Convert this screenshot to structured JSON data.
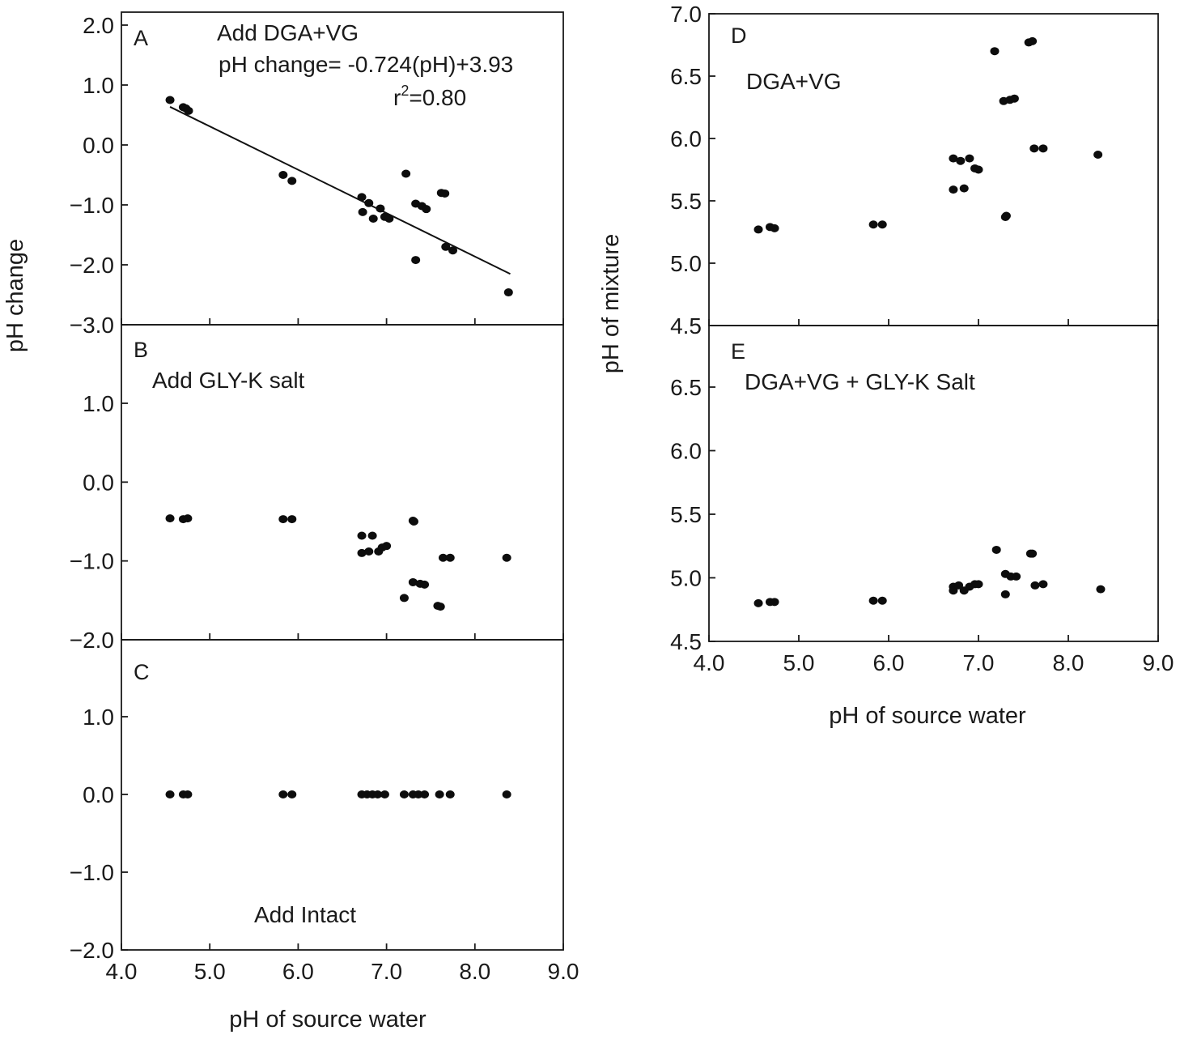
{
  "figure": {
    "left_ylabel": "pH change",
    "right_ylabel": "pH of mixture",
    "left_xlabel": "pH of source water",
    "right_xlabel": "pH of source water"
  },
  "chart_data": [
    {
      "panel": "A",
      "type": "scatter",
      "annotation": "Add DGA+VG",
      "equation": "pH change= -0.724(pH)+3.93",
      "r2_prefix": "r",
      "r2_sup": "2",
      "r2_value": "=0.80",
      "xlim": [
        4.0,
        9.0
      ],
      "ylim": [
        -3.0,
        2.0
      ],
      "yticks": [
        "−3.0",
        "−2.0",
        "−1.0",
        "0.0",
        "1.0",
        "2.0"
      ],
      "yticks_v": [
        -3,
        -2,
        -1,
        0,
        1,
        2
      ],
      "fit": {
        "slope": -0.724,
        "intercept": 3.93,
        "x": [
          4.55,
          8.4
        ]
      },
      "points": [
        [
          4.55,
          0.75
        ],
        [
          4.7,
          0.63
        ],
        [
          4.73,
          0.61
        ],
        [
          4.76,
          0.57
        ],
        [
          5.83,
          -0.5
        ],
        [
          5.93,
          -0.6
        ],
        [
          6.72,
          -0.87
        ],
        [
          6.73,
          -1.12
        ],
        [
          6.8,
          -0.97
        ],
        [
          6.85,
          -1.23
        ],
        [
          6.93,
          -1.06
        ],
        [
          6.98,
          -1.2
        ],
        [
          7.03,
          -1.23
        ],
        [
          7.22,
          -0.48
        ],
        [
          7.33,
          -0.98
        ],
        [
          7.4,
          -1.02
        ],
        [
          7.45,
          -1.07
        ],
        [
          7.33,
          -1.92
        ],
        [
          7.62,
          -0.8
        ],
        [
          7.66,
          -0.81
        ],
        [
          7.67,
          -1.7
        ],
        [
          7.75,
          -1.76
        ],
        [
          8.38,
          -2.46
        ]
      ]
    },
    {
      "panel": "B",
      "type": "scatter",
      "annotation": "Add GLY-K salt",
      "xlim": [
        4.0,
        9.0
      ],
      "ylim": [
        -2.0,
        2.0
      ],
      "yticks": [
        "−2.0",
        "−1.0",
        "0.0",
        "1.0"
      ],
      "yticks_v": [
        -2,
        -1,
        0,
        1
      ],
      "points": [
        [
          4.55,
          -0.46
        ],
        [
          4.7,
          -0.47
        ],
        [
          4.75,
          -0.46
        ],
        [
          5.83,
          -0.47
        ],
        [
          5.93,
          -0.47
        ],
        [
          6.72,
          -0.68
        ],
        [
          6.72,
          -0.9
        ],
        [
          6.8,
          -0.88
        ],
        [
          6.84,
          -0.68
        ],
        [
          6.91,
          -0.88
        ],
        [
          6.95,
          -0.83
        ],
        [
          7.0,
          -0.81
        ],
        [
          7.2,
          -1.47
        ],
        [
          7.3,
          -0.49
        ],
        [
          7.31,
          -0.5
        ],
        [
          7.3,
          -1.27
        ],
        [
          7.38,
          -1.29
        ],
        [
          7.43,
          -1.3
        ],
        [
          7.58,
          -1.57
        ],
        [
          7.61,
          -1.58
        ],
        [
          7.64,
          -0.96
        ],
        [
          7.72,
          -0.96
        ],
        [
          8.36,
          -0.96
        ]
      ]
    },
    {
      "panel": "C",
      "type": "scatter",
      "annotation": "Add Intact",
      "xlim": [
        4.0,
        9.0
      ],
      "ylim": [
        -2.0,
        2.0
      ],
      "yticks": [
        "−2.0",
        "−1.0",
        "0.0",
        "1.0"
      ],
      "yticks_v": [
        -2,
        -1,
        0,
        1
      ],
      "xticks": [
        "4.0",
        "5.0",
        "6.0",
        "7.0",
        "8.0",
        "9.0"
      ],
      "xticks_v": [
        4,
        5,
        6,
        7,
        8,
        9
      ],
      "points": [
        [
          4.55,
          0.0
        ],
        [
          4.7,
          0.0
        ],
        [
          4.75,
          0.0
        ],
        [
          5.83,
          0.0
        ],
        [
          5.93,
          0.0
        ],
        [
          6.72,
          0.0
        ],
        [
          6.78,
          0.0
        ],
        [
          6.84,
          0.0
        ],
        [
          6.9,
          0.0
        ],
        [
          6.98,
          0.0
        ],
        [
          7.2,
          0.0
        ],
        [
          7.3,
          0.0
        ],
        [
          7.36,
          0.0
        ],
        [
          7.43,
          0.0
        ],
        [
          7.6,
          0.0
        ],
        [
          7.72,
          0.0
        ],
        [
          8.36,
          0.0
        ]
      ]
    },
    {
      "panel": "D",
      "type": "scatter",
      "annotation": "DGA+VG",
      "xlim": [
        4.0,
        9.0
      ],
      "ylim": [
        4.5,
        7.0
      ],
      "yticks": [
        "4.5",
        "5.0",
        "5.5",
        "6.0",
        "6.5",
        "7.0"
      ],
      "yticks_v": [
        4.5,
        5.0,
        5.5,
        6.0,
        6.5,
        7.0
      ],
      "points": [
        [
          4.55,
          5.27
        ],
        [
          4.68,
          5.29
        ],
        [
          4.73,
          5.28
        ],
        [
          5.83,
          5.31
        ],
        [
          5.93,
          5.31
        ],
        [
          6.72,
          5.84
        ],
        [
          6.72,
          5.59
        ],
        [
          6.8,
          5.82
        ],
        [
          6.84,
          5.6
        ],
        [
          6.9,
          5.84
        ],
        [
          6.96,
          5.76
        ],
        [
          7.0,
          5.75
        ],
        [
          7.18,
          6.7
        ],
        [
          7.28,
          6.3
        ],
        [
          7.3,
          5.37
        ],
        [
          7.31,
          5.38
        ],
        [
          7.35,
          6.31
        ],
        [
          7.4,
          6.32
        ],
        [
          7.56,
          6.77
        ],
        [
          7.6,
          6.78
        ],
        [
          7.62,
          5.92
        ],
        [
          7.72,
          5.92
        ],
        [
          8.33,
          5.87
        ]
      ]
    },
    {
      "panel": "E",
      "type": "scatter",
      "annotation": "DGA+VG + GLY-K Salt",
      "xlim": [
        4.0,
        9.0
      ],
      "ylim": [
        4.5,
        7.0
      ],
      "yticks": [
        "4.5",
        "5.0",
        "5.5",
        "6.0",
        "6.5"
      ],
      "yticks_v": [
        4.5,
        5.0,
        5.5,
        6.0,
        6.5
      ],
      "xticks": [
        "4.0",
        "5.0",
        "6.0",
        "7.0",
        "8.0",
        "9.0"
      ],
      "xticks_v": [
        4,
        5,
        6,
        7,
        8,
        9
      ],
      "points": [
        [
          4.55,
          4.8
        ],
        [
          4.68,
          4.81
        ],
        [
          4.73,
          4.81
        ],
        [
          5.83,
          4.82
        ],
        [
          5.93,
          4.82
        ],
        [
          6.72,
          4.93
        ],
        [
          6.72,
          4.9
        ],
        [
          6.78,
          4.94
        ],
        [
          6.84,
          4.9
        ],
        [
          6.9,
          4.93
        ],
        [
          6.96,
          4.95
        ],
        [
          7.0,
          4.95
        ],
        [
          7.2,
          5.22
        ],
        [
          7.3,
          5.03
        ],
        [
          7.3,
          4.87
        ],
        [
          7.36,
          5.01
        ],
        [
          7.42,
          5.01
        ],
        [
          7.58,
          5.19
        ],
        [
          7.6,
          5.19
        ],
        [
          7.63,
          4.94
        ],
        [
          7.72,
          4.95
        ],
        [
          8.36,
          4.91
        ]
      ]
    }
  ]
}
